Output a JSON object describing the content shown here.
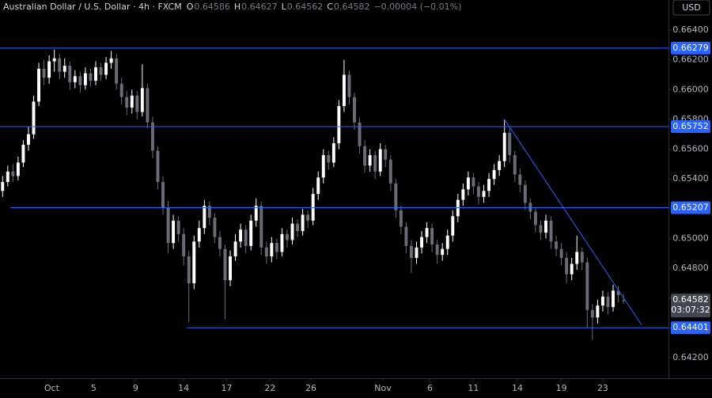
{
  "chart_data": {
    "type": "candlestick",
    "title": "Australian Dollar / U.S. Dollar · 4h · FXCM",
    "ohlc_letters": [
      "O",
      "H",
      "L",
      "C"
    ],
    "change": "−0.00004 (−0.01%)",
    "currency": "USD",
    "countdown": "03:07:32",
    "up_color": "#ffffff",
    "down_color": "#6a6d78",
    "level_color": "#2962ff",
    "open": [
      0.6532,
      0.6538,
      0.6545,
      0.6542,
      0.6551,
      0.6563,
      0.657,
      0.6592,
      0.6614,
      0.6608,
      0.6619,
      0.6621,
      0.6612,
      0.6616,
      0.6605,
      0.6609,
      0.6603,
      0.6611,
      0.6606,
      0.6615,
      0.661,
      0.6618,
      0.6621,
      0.6604,
      0.6595,
      0.6588,
      0.6596,
      0.6585,
      0.6601,
      0.6578,
      0.6559,
      0.6538,
      0.6521,
      0.6497,
      0.6512,
      0.6503,
      0.6488,
      0.647,
      0.6498,
      0.6507,
      0.6522,
      0.6514,
      0.6501,
      0.6493,
      0.6472,
      0.6488,
      0.6498,
      0.6506,
      0.6495,
      0.6512,
      0.6522,
      0.6494,
      0.6488,
      0.6497,
      0.6491,
      0.6503,
      0.6499,
      0.651,
      0.6505,
      0.6516,
      0.6512,
      0.653,
      0.6541,
      0.6556,
      0.6551,
      0.6564,
      0.6589,
      0.661,
      0.6595,
      0.6578,
      0.6562,
      0.6549,
      0.6556,
      0.6545,
      0.656,
      0.6553,
      0.6537,
      0.6519,
      0.6508,
      0.6495,
      0.6487,
      0.6494,
      0.6501,
      0.6507,
      0.6496,
      0.6489,
      0.6493,
      0.6502,
      0.6515,
      0.6526,
      0.6533,
      0.6541,
      0.6535,
      0.6528,
      0.6532,
      0.654,
      0.6546,
      0.6552,
      0.6571,
      0.6556,
      0.6543,
      0.6536,
      0.6524,
      0.6518,
      0.6509,
      0.6504,
      0.6512,
      0.6498,
      0.6493,
      0.6487,
      0.6476,
      0.6483,
      0.6491,
      0.6484,
      0.6452,
      0.6447,
      0.6455,
      0.6461,
      0.6454,
      0.6465,
      0.64586
    ],
    "high": [
      0.6542,
      0.6549,
      0.655,
      0.6555,
      0.6566,
      0.6575,
      0.6596,
      0.6618,
      0.662,
      0.6623,
      0.6627,
      0.6624,
      0.6621,
      0.6619,
      0.6613,
      0.6612,
      0.6615,
      0.6614,
      0.6619,
      0.6618,
      0.6622,
      0.6626,
      0.6624,
      0.6608,
      0.6599,
      0.66,
      0.6599,
      0.6617,
      0.6604,
      0.6582,
      0.6562,
      0.6542,
      0.6525,
      0.6516,
      0.6515,
      0.6507,
      0.6492,
      0.6502,
      0.6512,
      0.6526,
      0.6525,
      0.6517,
      0.6505,
      0.6496,
      0.6492,
      0.6503,
      0.651,
      0.6509,
      0.6516,
      0.6527,
      0.6525,
      0.6498,
      0.6501,
      0.65,
      0.6507,
      0.6506,
      0.6514,
      0.6513,
      0.652,
      0.6519,
      0.6534,
      0.6545,
      0.656,
      0.6559,
      0.6568,
      0.6593,
      0.662,
      0.6613,
      0.6598,
      0.6581,
      0.6566,
      0.656,
      0.6559,
      0.6564,
      0.6563,
      0.6556,
      0.654,
      0.6522,
      0.6511,
      0.6499,
      0.6498,
      0.6505,
      0.6511,
      0.651,
      0.6499,
      0.6497,
      0.6506,
      0.6519,
      0.653,
      0.6537,
      0.6545,
      0.6544,
      0.6538,
      0.6536,
      0.6544,
      0.655,
      0.6556,
      0.658,
      0.6574,
      0.6559,
      0.6547,
      0.6539,
      0.6527,
      0.6521,
      0.6512,
      0.6516,
      0.6515,
      0.6502,
      0.6497,
      0.6491,
      0.6487,
      0.6502,
      0.6494,
      0.6487,
      0.6456,
      0.6459,
      0.6465,
      0.6464,
      0.6469,
      0.6468,
      0.64627
    ],
    "low": [
      0.6528,
      0.6535,
      0.6538,
      0.6539,
      0.6548,
      0.6559,
      0.6567,
      0.6589,
      0.6603,
      0.6604,
      0.6612,
      0.6607,
      0.6608,
      0.66,
      0.6601,
      0.6598,
      0.66,
      0.6602,
      0.6603,
      0.6606,
      0.6607,
      0.6614,
      0.66,
      0.659,
      0.6583,
      0.6584,
      0.658,
      0.6582,
      0.6574,
      0.6554,
      0.6533,
      0.6516,
      0.649,
      0.6493,
      0.6498,
      0.6482,
      0.6444,
      0.6466,
      0.6494,
      0.6503,
      0.6509,
      0.6497,
      0.6488,
      0.6446,
      0.6468,
      0.6485,
      0.6494,
      0.649,
      0.6492,
      0.6508,
      0.6489,
      0.6483,
      0.6484,
      0.6486,
      0.6488,
      0.6494,
      0.6496,
      0.6501,
      0.6502,
      0.6507,
      0.6509,
      0.6526,
      0.6537,
      0.6546,
      0.6548,
      0.656,
      0.6585,
      0.659,
      0.6573,
      0.6557,
      0.6544,
      0.6545,
      0.654,
      0.6542,
      0.6548,
      0.6532,
      0.6514,
      0.6503,
      0.649,
      0.6477,
      0.6483,
      0.649,
      0.6497,
      0.6491,
      0.6483,
      0.6485,
      0.6489,
      0.6498,
      0.6511,
      0.6522,
      0.6529,
      0.653,
      0.6523,
      0.6524,
      0.6528,
      0.6536,
      0.6542,
      0.6548,
      0.6551,
      0.6538,
      0.6531,
      0.6519,
      0.6513,
      0.6504,
      0.6499,
      0.65,
      0.6493,
      0.6488,
      0.6482,
      0.647,
      0.6472,
      0.6479,
      0.6479,
      0.644,
      0.6432,
      0.6443,
      0.6451,
      0.6449,
      0.6451,
      0.6457,
      0.64562
    ],
    "close": [
      0.6538,
      0.6545,
      0.6542,
      0.6551,
      0.6563,
      0.657,
      0.6592,
      0.6614,
      0.6608,
      0.6619,
      0.6621,
      0.6612,
      0.6616,
      0.6605,
      0.6609,
      0.6603,
      0.6611,
      0.6606,
      0.6615,
      0.661,
      0.6618,
      0.6621,
      0.6604,
      0.6595,
      0.6588,
      0.6596,
      0.6585,
      0.6601,
      0.6578,
      0.6559,
      0.6538,
      0.6521,
      0.6497,
      0.6512,
      0.6503,
      0.6488,
      0.647,
      0.6498,
      0.6507,
      0.6522,
      0.6514,
      0.6501,
      0.6493,
      0.6472,
      0.6488,
      0.6498,
      0.6506,
      0.6495,
      0.6512,
      0.6522,
      0.6494,
      0.6488,
      0.6497,
      0.6491,
      0.6503,
      0.6499,
      0.651,
      0.6505,
      0.6516,
      0.6512,
      0.653,
      0.6541,
      0.6556,
      0.6551,
      0.6564,
      0.6589,
      0.661,
      0.6595,
      0.6578,
      0.6562,
      0.6549,
      0.6556,
      0.6545,
      0.656,
      0.6553,
      0.6537,
      0.6519,
      0.6508,
      0.6495,
      0.6487,
      0.6494,
      0.6501,
      0.6507,
      0.6496,
      0.6489,
      0.6493,
      0.6502,
      0.6515,
      0.6526,
      0.6533,
      0.6541,
      0.6535,
      0.6528,
      0.6532,
      0.654,
      0.6546,
      0.6552,
      0.6571,
      0.6556,
      0.6543,
      0.6536,
      0.6524,
      0.6518,
      0.6509,
      0.6504,
      0.6512,
      0.6498,
      0.6493,
      0.6487,
      0.6476,
      0.6483,
      0.6491,
      0.6484,
      0.6452,
      0.6447,
      0.6455,
      0.6461,
      0.6454,
      0.6465,
      0.6462,
      0.64582
    ],
    "xlim": [
      -0.5,
      128.7
    ],
    "ylim": [
      0.64062,
      0.66602
    ],
    "xticks": [
      {
        "value": 9.5,
        "label": "Oct"
      },
      {
        "value": 17.6,
        "label": "5"
      },
      {
        "value": 25.7,
        "label": "9"
      },
      {
        "value": 35,
        "label": "14"
      },
      {
        "value": 43.3,
        "label": "17"
      },
      {
        "value": 51.7,
        "label": "22"
      },
      {
        "value": 59.6,
        "label": "26"
      },
      {
        "value": 73.5,
        "label": "Nov"
      },
      {
        "value": 82.6,
        "label": "6"
      },
      {
        "value": 91,
        "label": "11"
      },
      {
        "value": 99.5,
        "label": "14"
      },
      {
        "value": 108,
        "label": "19"
      },
      {
        "value": 116,
        "label": "23"
      }
    ],
    "yticks": [
      {
        "value": 0.642,
        "label": "0.64200"
      },
      {
        "value": 0.644,
        "label": "0.64400"
      },
      {
        "value": 0.646,
        "label": "0.64600"
      },
      {
        "value": 0.648,
        "label": "0.64800"
      },
      {
        "value": 0.65,
        "label": "0.65000"
      },
      {
        "value": 0.652,
        "label": "0.65200"
      },
      {
        "value": 0.654,
        "label": "0.65400"
      },
      {
        "value": 0.656,
        "label": "0.65600"
      },
      {
        "value": 0.658,
        "label": "0.65800"
      },
      {
        "value": 0.66,
        "label": "0.66000"
      },
      {
        "value": 0.662,
        "label": "0.66200"
      },
      {
        "value": 0.664,
        "label": "0.66400"
      }
    ],
    "levels": [
      {
        "value": 0.66279,
        "from": -0.5
      },
      {
        "value": 0.65752,
        "from": -0.5
      },
      {
        "value": 0.65207,
        "from": 1.5
      },
      {
        "value": 0.64401,
        "from": 35.6
      }
    ],
    "trendline": {
      "x": [
        97,
        123.5
      ],
      "y": [
        0.658,
        0.6442
      ]
    }
  }
}
